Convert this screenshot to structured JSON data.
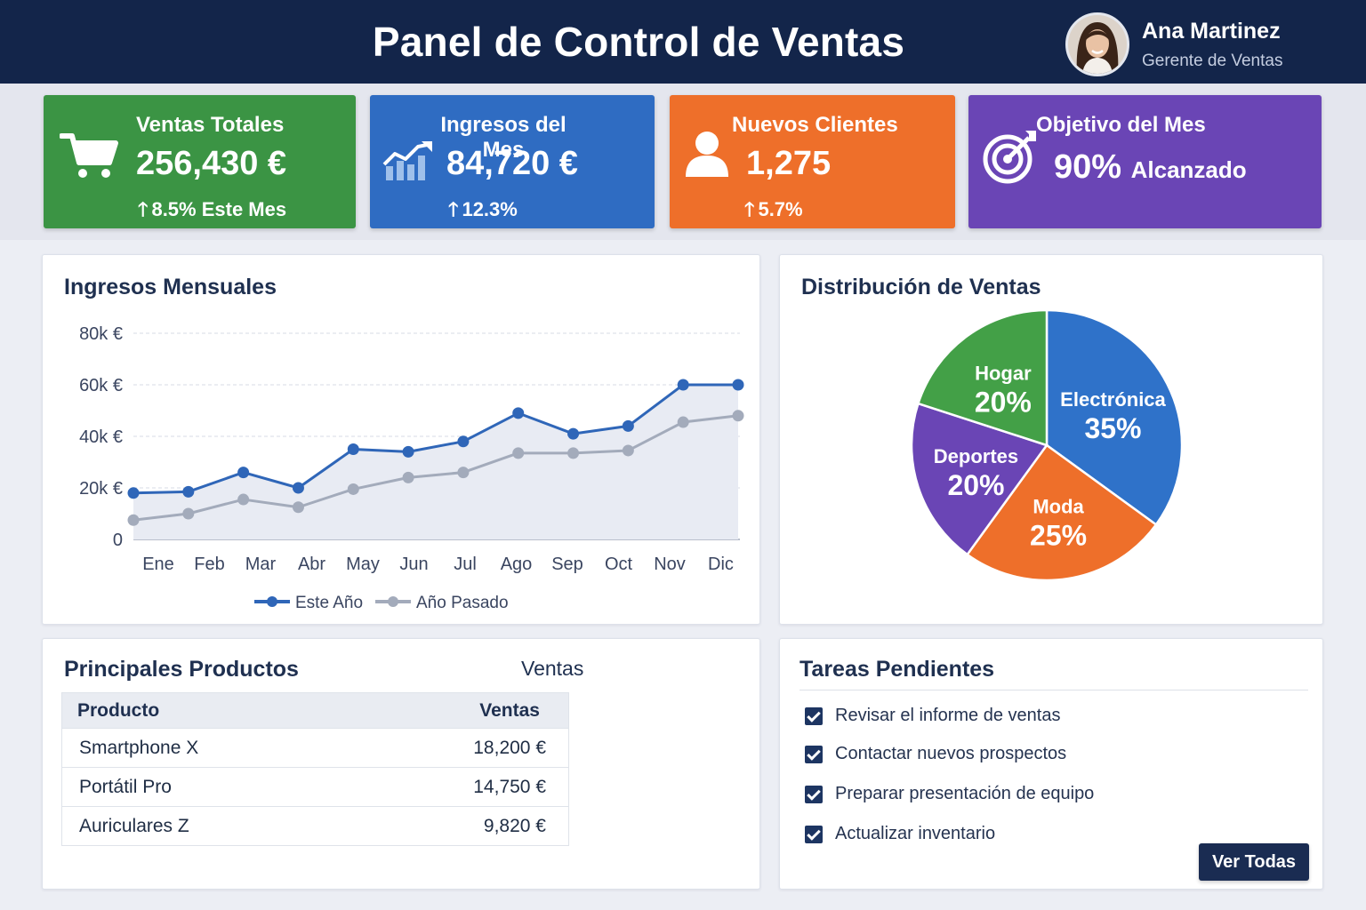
{
  "header": {
    "title": "Panel de Control de Ventas",
    "user_name": "Ana Martinez",
    "user_role": "Gerente de Ventas"
  },
  "kpis": [
    {
      "title": "Ventas Totales",
      "value": "256,430 €",
      "change": "8.5% Este Mes",
      "icon": "shopping-cart-icon",
      "color": "#3b9444"
    },
    {
      "title": "Ingresos del Mes",
      "value": "84,720 €",
      "change": "12.3%",
      "icon": "trending-chart-icon",
      "color": "#2f6cc2"
    },
    {
      "title": "Nuevos Clientes",
      "value": "1,275",
      "change": "5.7%",
      "icon": "user-icon",
      "color": "#ee6f2a"
    },
    {
      "title": "Objetivo del Mes",
      "value": "90%",
      "value_suffix": "Alcanzado",
      "icon": "target-icon",
      "color": "#6a45b5"
    }
  ],
  "line_chart_title": "Ingresos Mensuales",
  "pie_chart_title": "Distribución de Ventas",
  "chart_data": [
    {
      "type": "line",
      "x": [
        "Ene",
        "Feb",
        "Mar",
        "Abr",
        "May",
        "Jun",
        "Jul",
        "Ago",
        "Sep",
        "Oct",
        "Nov",
        "Dic"
      ],
      "y_tick_labels": [
        "0",
        "20k €",
        "40k €",
        "60k €",
        "80k €"
      ],
      "y_ticks": [
        0,
        20000,
        40000,
        60000,
        80000
      ],
      "ylim": [
        0,
        80000
      ],
      "grid": true,
      "legend": "bottom",
      "series": [
        {
          "name": "Este Año",
          "color": "#2f66b8",
          "values": [
            18000,
            18500,
            26000,
            20000,
            35000,
            34000,
            38000,
            49000,
            41000,
            44000,
            60000,
            60000
          ]
        },
        {
          "name": "Año Pasado",
          "color": "#a3abbb",
          "values": [
            7500,
            10000,
            15500,
            12500,
            19500,
            24000,
            26000,
            33500,
            33500,
            34500,
            45500,
            48000
          ]
        }
      ]
    },
    {
      "type": "pie",
      "slices": [
        {
          "label": "Electrónica",
          "value": 35,
          "value_label": "35%",
          "color": "#2f72c9"
        },
        {
          "label": "Moda",
          "value": 25,
          "value_label": "25%",
          "color": "#ee6f2a"
        },
        {
          "label": "Deportes",
          "value": 20,
          "value_label": "20%",
          "color": "#6a45b5"
        },
        {
          "label": "Hogar",
          "value": 20,
          "value_label": "20%",
          "color": "#43a047"
        }
      ]
    }
  ],
  "products": {
    "title": "Principales Productos",
    "header_sales": "Ventas",
    "columns": [
      "Producto",
      "Ventas"
    ],
    "rows": [
      {
        "name": "Smartphone X",
        "sales": "18,200 €"
      },
      {
        "name": "Portátil Pro",
        "sales": "14,750 €"
      },
      {
        "name": "Auriculares Z",
        "sales": "9,820 €"
      }
    ]
  },
  "tasks": {
    "title": "Tareas Pendientes",
    "items": [
      {
        "label": "Revisar el informe de ventas",
        "checked": true
      },
      {
        "label": "Contactar nuevos prospectos",
        "checked": true
      },
      {
        "label": "Preparar presentación de equipo",
        "checked": true
      },
      {
        "label": "Actualizar inventario",
        "checked": true
      }
    ],
    "button_label": "Ver Todas"
  }
}
